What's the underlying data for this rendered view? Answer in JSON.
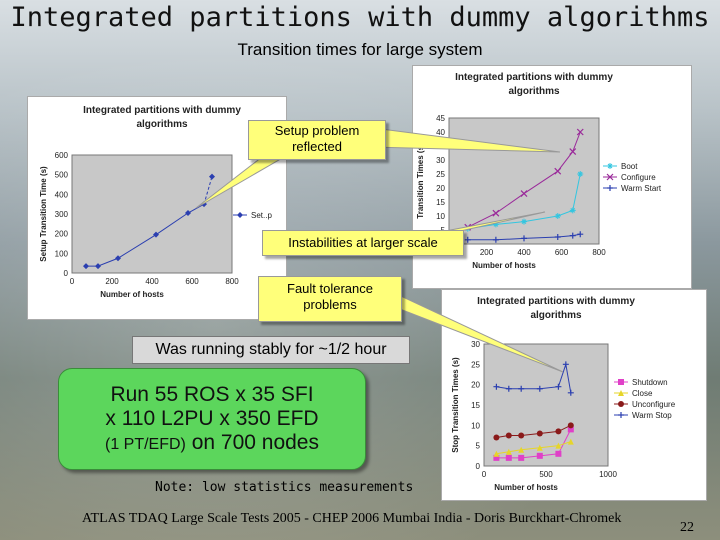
{
  "slide": {
    "title": "Integrated partitions with dummy algorithms",
    "subtitle": "Transition times for large system",
    "footer": "ATLAS TDAQ Large Scale Tests 2005 - CHEP 2006 Mumbai India  - Doris Burckhart-Chromek",
    "page_number": "22",
    "note": "Note: low statistics measurements"
  },
  "callouts": {
    "setup_problem": "Setup problem reflected",
    "instabilities": "Instabilities at larger scale",
    "fault_tolerance": "Fault tolerance problems",
    "stable": "Was running stably for ~1/2 hour",
    "run_line1": "Run 55 ROS x 35 SFI",
    "run_line2": "x 110 L2PU x 350  EFD",
    "run_line3a": "(1 PT/EFD)",
    "run_line3b": " on 700 nodes"
  },
  "chart_data": [
    {
      "type": "line",
      "title": "Integrated partitions with dummy algorithms",
      "xlabel": "Number of hosts",
      "ylabel": "Setup Transition Time (s)",
      "xlim": [
        0,
        800
      ],
      "ylim": [
        0,
        600
      ],
      "xticks": [
        0,
        200,
        400,
        600,
        800
      ],
      "yticks": [
        0,
        100,
        200,
        300,
        400,
        500,
        600
      ],
      "series": [
        {
          "name": "Set..p",
          "color": "#2b3fb0",
          "marker": "diamond",
          "dashed_last_segment": true,
          "x": [
            70,
            130,
            230,
            420,
            580,
            660,
            700
          ],
          "y": [
            35,
            35,
            75,
            195,
            305,
            350,
            490
          ]
        }
      ]
    },
    {
      "type": "line",
      "title": "Integrated partitions with dummy algorithms",
      "xlabel": "Number of hosts",
      "ylabel": "Transition Times (s)",
      "xlim": [
        0,
        800
      ],
      "ylim": [
        0,
        45
      ],
      "xticks": [
        200,
        400,
        600,
        800
      ],
      "yticks": [
        5,
        10,
        15,
        20,
        25,
        30,
        35,
        40,
        45
      ],
      "series": [
        {
          "name": "Boot",
          "color": "#33c6e0",
          "marker": "asterisk",
          "x": [
            100,
            250,
            400,
            580,
            660,
            700
          ],
          "y": [
            5.5,
            7,
            8,
            10,
            12,
            25
          ]
        },
        {
          "name": "Configure",
          "color": "#9a2a9a",
          "marker": "x",
          "x": [
            100,
            250,
            400,
            580,
            660,
            700
          ],
          "y": [
            6,
            11,
            18,
            26,
            33,
            40
          ]
        },
        {
          "name": "Warm Start",
          "color": "#2b3fb0",
          "marker": "plus",
          "x": [
            100,
            250,
            400,
            580,
            660,
            700
          ],
          "y": [
            1.5,
            1.5,
            2,
            2.5,
            3,
            3.5
          ]
        }
      ]
    },
    {
      "type": "line",
      "title": "Integrated partitions with dummy algorithms",
      "xlabel": "Number of hosts",
      "ylabel": "Stop Transition Times (s)",
      "xlim": [
        0,
        1000
      ],
      "ylim": [
        0,
        30
      ],
      "xticks": [
        0,
        500,
        1000
      ],
      "yticks": [
        0,
        5,
        10,
        15,
        20,
        25,
        30
      ],
      "series": [
        {
          "name": "Shutdown",
          "color": "#e040c8",
          "marker": "square",
          "x": [
            100,
            200,
            300,
            450,
            600,
            700
          ],
          "y": [
            2,
            2,
            2,
            2.5,
            3,
            9
          ]
        },
        {
          "name": "Close",
          "color": "#e6d52a",
          "marker": "triangle",
          "x": [
            100,
            200,
            300,
            450,
            600,
            700
          ],
          "y": [
            3,
            3.5,
            4,
            4.5,
            5,
            6
          ]
        },
        {
          "name": "Unconfigure",
          "color": "#8a1a1a",
          "marker": "circle",
          "x": [
            100,
            200,
            300,
            450,
            600,
            700
          ],
          "y": [
            7,
            7.5,
            7.5,
            8,
            8.5,
            10
          ]
        },
        {
          "name": "Warm Stop",
          "color": "#2b3fb0",
          "marker": "plus",
          "x": [
            100,
            200,
            300,
            450,
            600,
            660,
            700
          ],
          "y": [
            19.5,
            19,
            19,
            19,
            19.5,
            25,
            18
          ]
        }
      ]
    }
  ]
}
